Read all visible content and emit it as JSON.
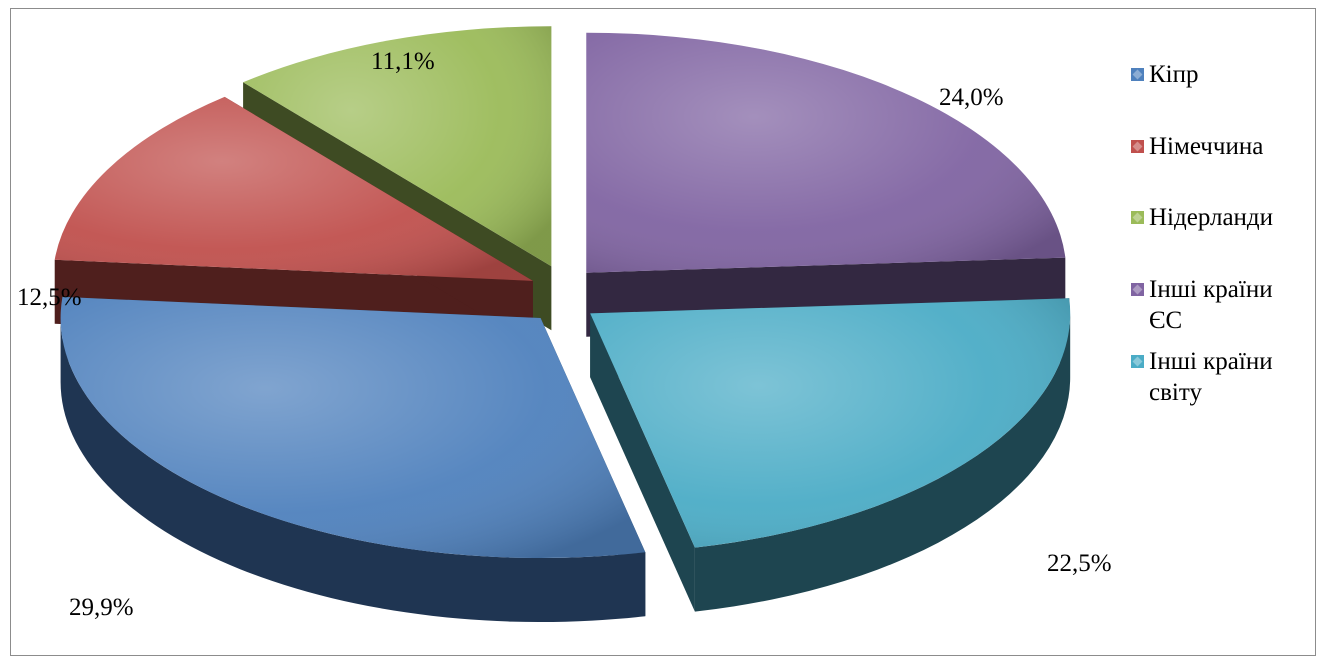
{
  "chart_data": {
    "type": "pie",
    "title": "",
    "categories": [
      "Кіпр",
      "Німеччина",
      "Нідерланди",
      "Інші країни ЄС",
      "Інші країни світу"
    ],
    "values": [
      29.9,
      12.5,
      11.1,
      24.0,
      22.5
    ],
    "value_labels": [
      "29,9%",
      "12,5%",
      "11,1%",
      "24,0%",
      "22,5%"
    ],
    "colors": [
      "#4f81bd",
      "#c0504d",
      "#9bbb59",
      "#8064a2",
      "#4bacc6"
    ],
    "side_colors": [
      "#1f3552",
      "#4f1f1d",
      "#3e4b23",
      "#332841",
      "#1e4550"
    ],
    "style": "3d-exploded",
    "legend_position": "right"
  }
}
